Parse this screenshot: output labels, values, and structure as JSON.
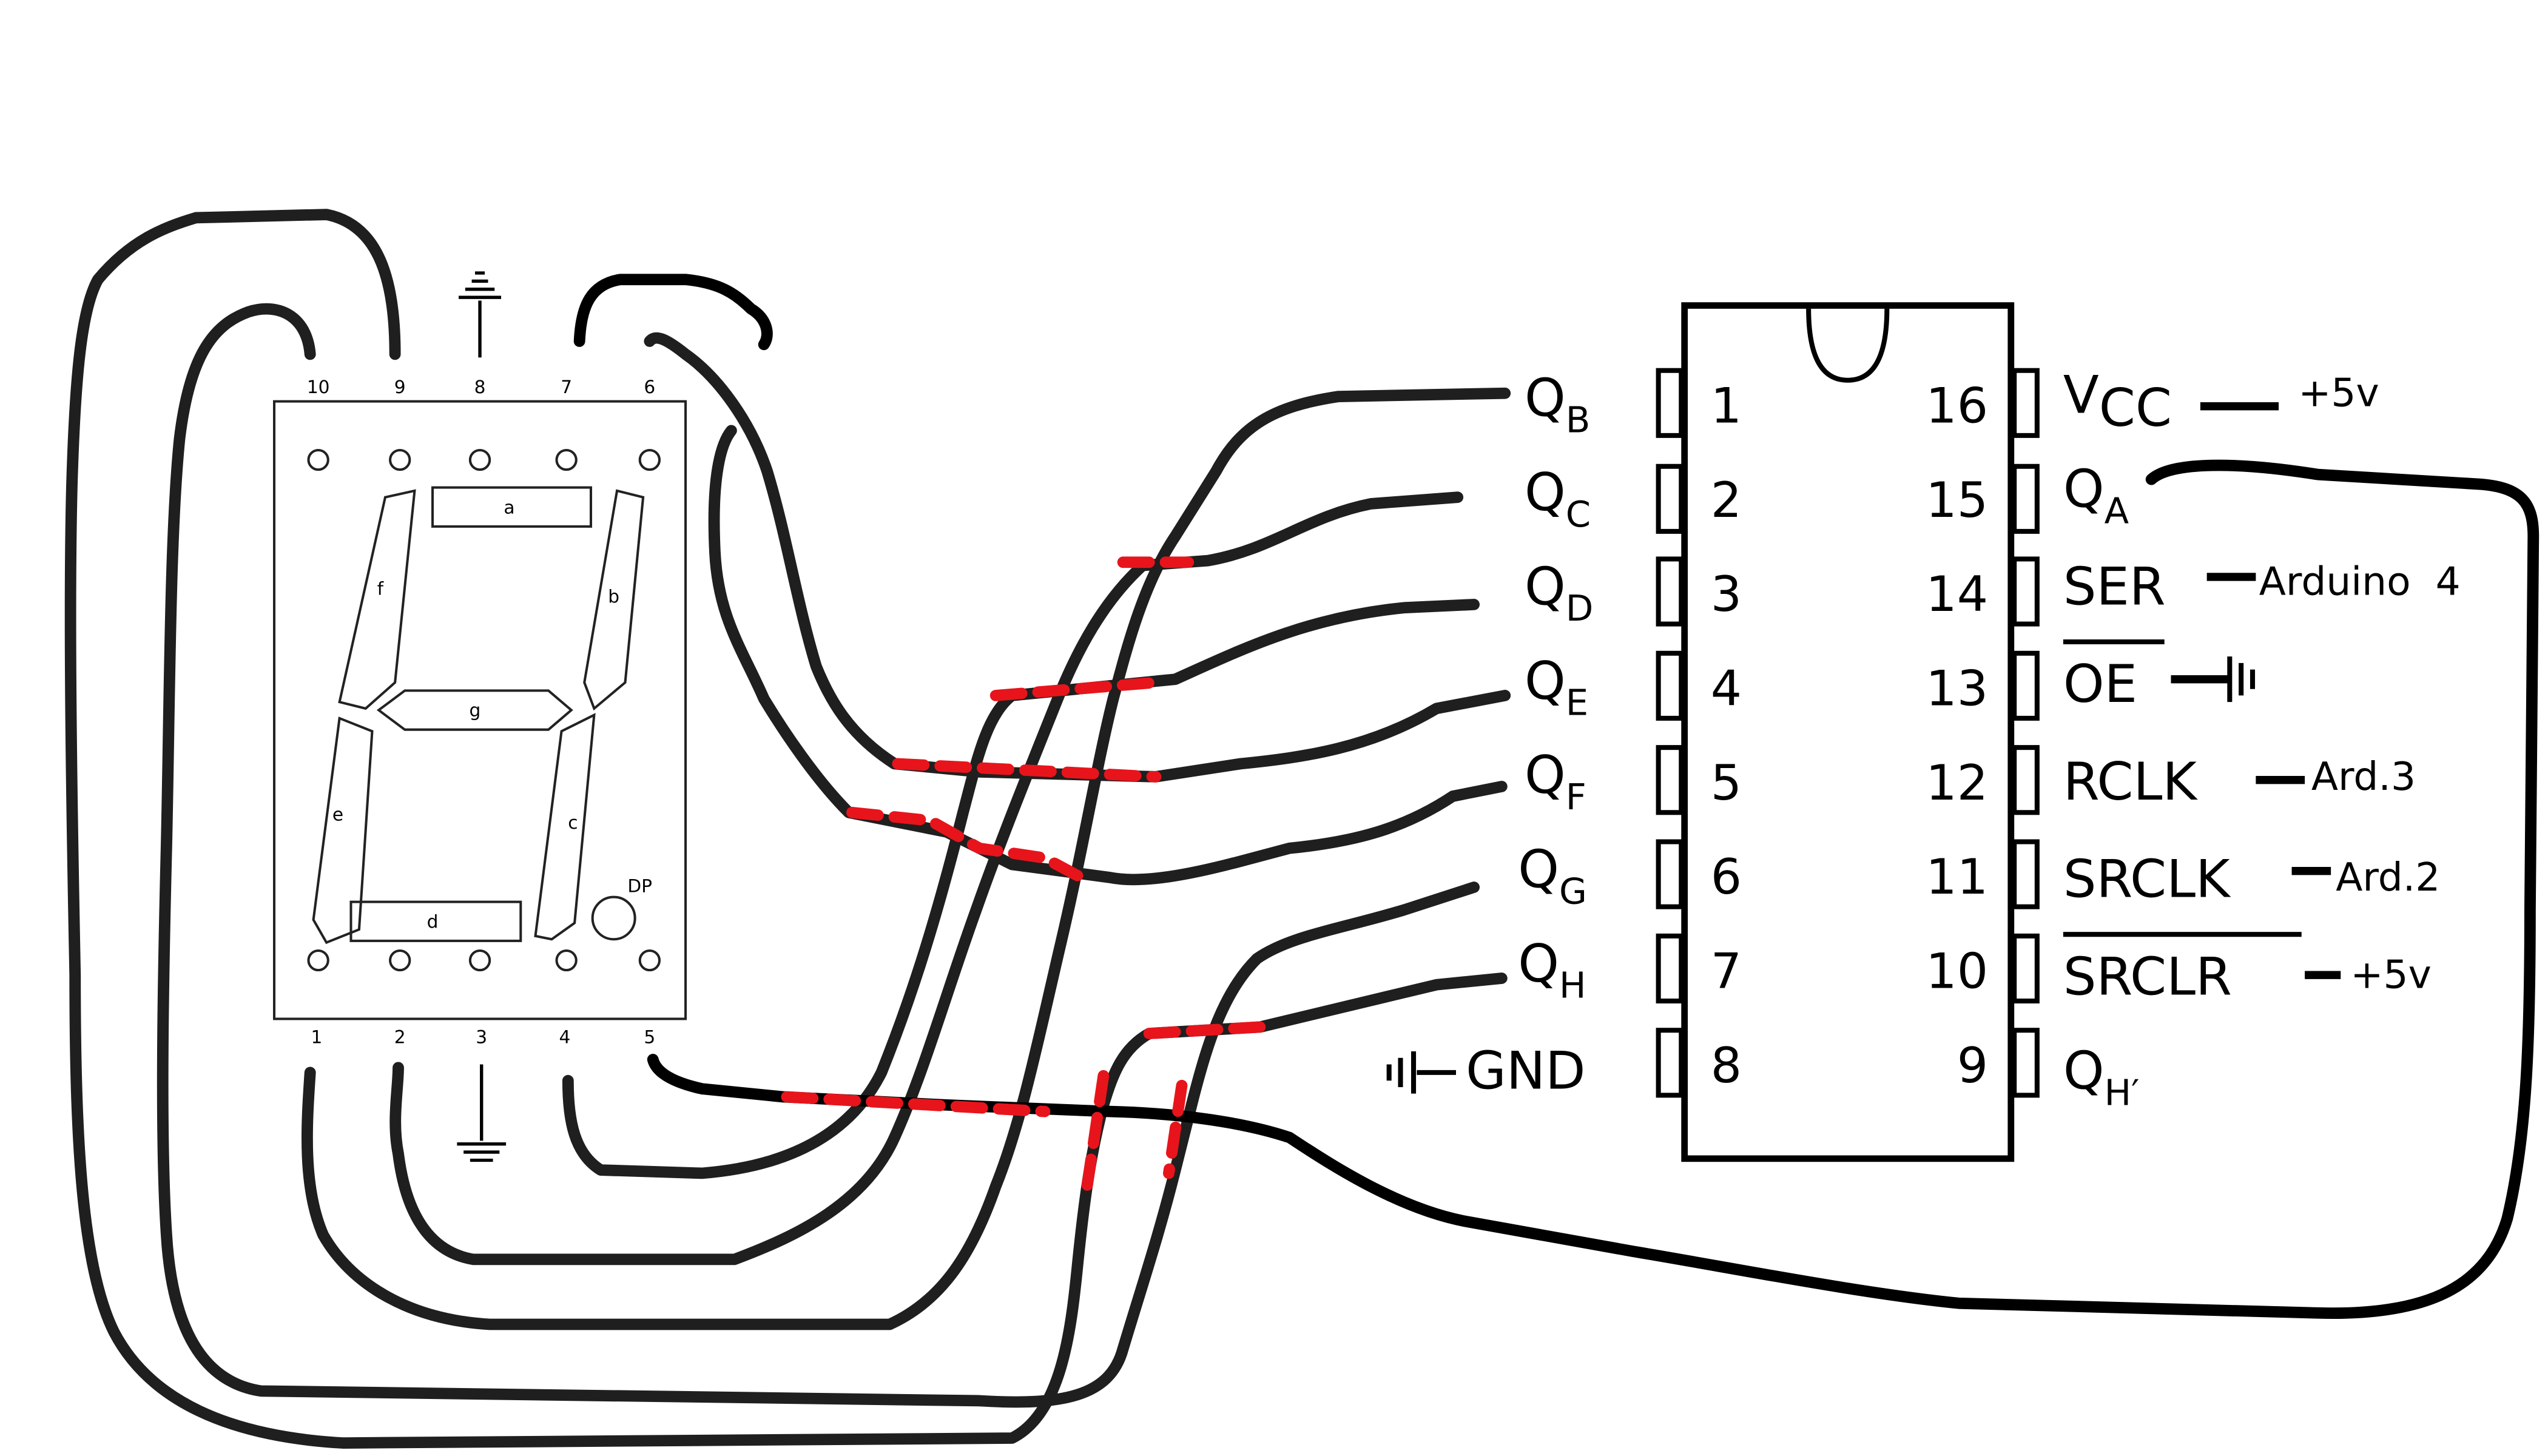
{
  "colors": {
    "background": "#ffffff",
    "wire": "#000000",
    "wire_crossover": "#e8141b",
    "outline": "#222222"
  },
  "seven_segment": {
    "top_pins": [
      "10",
      "9",
      "8",
      "7",
      "6"
    ],
    "bottom_pins": [
      "1",
      "2",
      "3",
      "4",
      "5"
    ],
    "segments": [
      "a",
      "b",
      "c",
      "d",
      "e",
      "f",
      "g"
    ],
    "dp_label": "DP",
    "ground_icon": "ground-icon"
  },
  "ic": {
    "left_pins": [
      {
        "num": "1",
        "name": "Q",
        "sub": "B"
      },
      {
        "num": "2",
        "name": "Q",
        "sub": "C"
      },
      {
        "num": "3",
        "name": "Q",
        "sub": "D"
      },
      {
        "num": "4",
        "name": "Q",
        "sub": "E"
      },
      {
        "num": "5",
        "name": "Q",
        "sub": "F"
      },
      {
        "num": "6",
        "name": "Q",
        "sub": "G"
      },
      {
        "num": "7",
        "name": "Q",
        "sub": "H"
      },
      {
        "num": "8",
        "name": "GND",
        "sub": ""
      }
    ],
    "right_pins": [
      {
        "num": "16",
        "name": "V",
        "sub": "CC",
        "note": "+5v"
      },
      {
        "num": "15",
        "name": "Q",
        "sub": "A",
        "note": ""
      },
      {
        "num": "14",
        "name": "SER",
        "sub": "",
        "note": "Arduino  4"
      },
      {
        "num": "13",
        "name": "OE",
        "sub": "",
        "note": ""
      },
      {
        "num": "12",
        "name": "RCLK",
        "sub": "",
        "note": "Ard.3"
      },
      {
        "num": "11",
        "name": "SRCLK",
        "sub": "",
        "note": "Ard.2"
      },
      {
        "num": "10",
        "name": "SRCLR",
        "sub": "",
        "note": "+5v"
      },
      {
        "num": "9",
        "name": "Q",
        "sub": "H′",
        "note": ""
      }
    ]
  }
}
